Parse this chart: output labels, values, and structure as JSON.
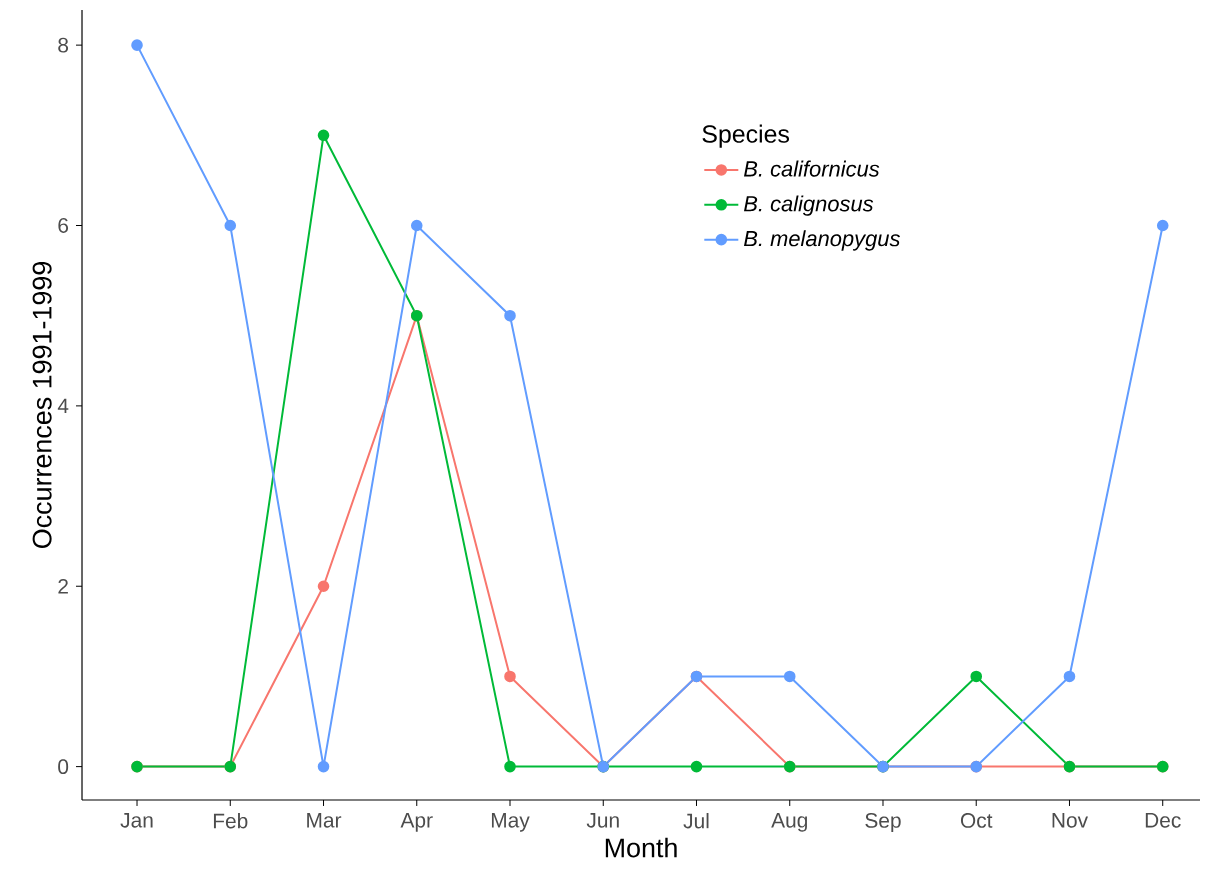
{
  "chart_data": {
    "type": "line",
    "xlabel": "Month",
    "ylabel": "Occurrences 1991-1999",
    "legend_title": "Species",
    "categories": [
      "Jan",
      "Feb",
      "Mar",
      "Apr",
      "May",
      "Jun",
      "Jul",
      "Aug",
      "Sep",
      "Oct",
      "Nov",
      "Dec"
    ],
    "series": [
      {
        "name": "B. californicus",
        "color": "#f8766d",
        "values": [
          0,
          0,
          2,
          5,
          1,
          0,
          1,
          0,
          0,
          0,
          0,
          0
        ]
      },
      {
        "name": "B. calignosus",
        "color": "#00ba38",
        "values": [
          0,
          0,
          7,
          5,
          0,
          0,
          0,
          0,
          0,
          1,
          0,
          0
        ]
      },
      {
        "name": "B. melanopygus",
        "color": "#619cff",
        "values": [
          8,
          6,
          0,
          6,
          5,
          0,
          1,
          1,
          0,
          0,
          1,
          6
        ]
      }
    ],
    "ylim": [
      -0.37,
      8.39
    ],
    "yticks": [
      0,
      2,
      4,
      6,
      8
    ],
    "grid": false,
    "legend": "top right",
    "marker": "circle",
    "line_style": "solid"
  }
}
